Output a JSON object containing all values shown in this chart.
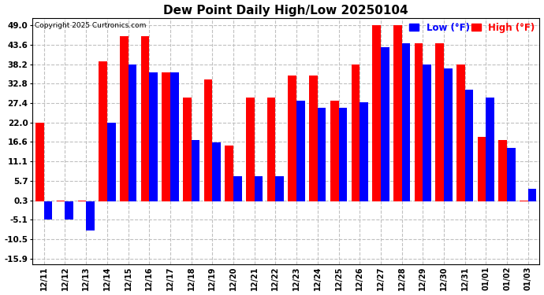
{
  "dates": [
    "12/11",
    "12/12",
    "12/13",
    "12/14",
    "12/15",
    "12/16",
    "12/17",
    "12/18",
    "12/19",
    "12/20",
    "12/21",
    "12/22",
    "12/23",
    "12/24",
    "12/25",
    "12/26",
    "12/27",
    "12/28",
    "12/29",
    "12/30",
    "12/31",
    "01/01",
    "01/02",
    "01/03"
  ],
  "high": [
    22.0,
    0.3,
    0.3,
    39.0,
    46.0,
    46.0,
    36.0,
    29.0,
    34.0,
    15.5,
    29.0,
    29.0,
    35.0,
    35.0,
    28.0,
    38.0,
    49.0,
    49.0,
    44.0,
    44.0,
    38.0,
    18.0,
    17.0,
    0.3
  ],
  "low": [
    -5.0,
    -5.0,
    -8.0,
    22.0,
    38.0,
    36.0,
    36.0,
    17.0,
    16.5,
    7.0,
    7.0,
    7.0,
    28.0,
    26.0,
    26.0,
    27.5,
    43.0,
    44.0,
    38.0,
    37.0,
    31.0,
    29.0,
    15.0,
    3.5
  ],
  "title": "Dew Point Daily High/Low 20250104",
  "copyright": "Copyright 2025 Curtronics.com",
  "legend_low": "Low (°F)",
  "legend_high": "High (°F)",
  "color_high": "#ff0000",
  "color_low": "#0000ff",
  "yticks": [
    49.0,
    43.6,
    38.2,
    32.8,
    27.4,
    22.0,
    16.6,
    11.1,
    5.7,
    0.3,
    -5.1,
    -10.5,
    -15.9
  ],
  "ylim": [
    -17.5,
    51.0
  ],
  "background_color": "#ffffff",
  "grid_color": "#c0c0c0"
}
